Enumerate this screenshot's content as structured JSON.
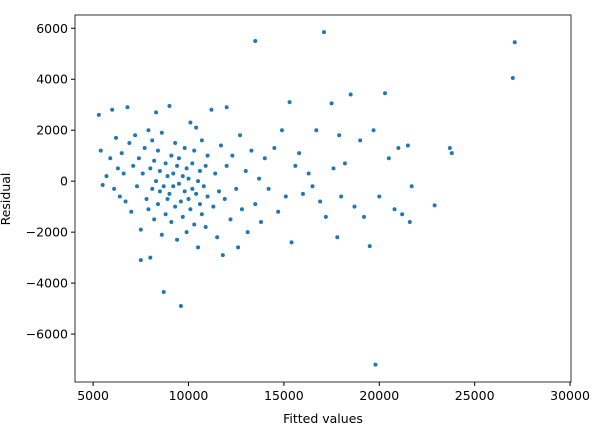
{
  "chart_data": {
    "type": "scatter",
    "xlabel": "Fitted values",
    "ylabel": "Residual",
    "xlim": [
      4050,
      30050
    ],
    "ylim": [
      -7880,
      6520
    ],
    "xticks": [
      5000,
      10000,
      15000,
      20000,
      25000,
      30000
    ],
    "yticks": [
      {
        "value": -6000,
        "label": "−6000"
      },
      {
        "value": -4000,
        "label": "−4000"
      },
      {
        "value": -2000,
        "label": "−2000"
      },
      0,
      2000,
      4000,
      6000
    ],
    "color": "#1f77b4",
    "x": [
      5300,
      5400,
      5500,
      5700,
      5900,
      6000,
      6100,
      6200,
      6300,
      6400,
      6500,
      6600,
      6700,
      6800,
      6900,
      7000,
      7100,
      7200,
      7300,
      7400,
      7500,
      7500,
      7600,
      7700,
      7800,
      7900,
      7900,
      8000,
      8000,
      8100,
      8100,
      8200,
      8200,
      8300,
      8300,
      8400,
      8400,
      8500,
      8500,
      8600,
      8600,
      8700,
      8700,
      8800,
      8800,
      8900,
      8900,
      9000,
      9000,
      9100,
      9100,
      9200,
      9200,
      9300,
      9300,
      9400,
      9400,
      9500,
      9500,
      9600,
      9600,
      9700,
      9700,
      9800,
      9800,
      9900,
      9900,
      10000,
      10000,
      10100,
      10100,
      10200,
      10200,
      10300,
      10300,
      10400,
      10400,
      10500,
      10500,
      10600,
      10600,
      10700,
      10700,
      10800,
      10900,
      10900,
      11000,
      11000,
      11200,
      11300,
      11400,
      11500,
      11600,
      11700,
      11800,
      11900,
      12000,
      12000,
      12200,
      12300,
      12500,
      12600,
      12700,
      12800,
      13000,
      13100,
      13300,
      13500,
      13500,
      13700,
      13800,
      14000,
      14200,
      14500,
      14700,
      14900,
      15100,
      15300,
      15400,
      15600,
      15800,
      16000,
      16300,
      16500,
      16700,
      16900,
      17100,
      17200,
      17500,
      17600,
      17800,
      17900,
      18000,
      18200,
      18500,
      18700,
      19000,
      19200,
      19500,
      19700,
      19800,
      20000,
      20300,
      20500,
      20800,
      21000,
      21200,
      21500,
      21600,
      21700,
      22900,
      23700,
      23800,
      27000,
      27100
    ],
    "y": [
      2600,
      1200,
      -150,
      200,
      900,
      2800,
      -300,
      1700,
      500,
      -600,
      1100,
      300,
      -800,
      2900,
      1500,
      -1200,
      600,
      1800,
      -200,
      900,
      -3100,
      -1900,
      300,
      1300,
      -700,
      2000,
      -1100,
      -3000,
      500,
      -300,
      1600,
      -1500,
      800,
      2700,
      0,
      -900,
      1200,
      -400,
      400,
      -2100,
      1900,
      -4350,
      -200,
      700,
      -1300,
      200,
      -700,
      2950,
      -500,
      1000,
      -1600,
      300,
      -200,
      -1000,
      1500,
      600,
      -2300,
      -100,
      900,
      -4900,
      -800,
      200,
      -1400,
      1300,
      -400,
      -2000,
      500,
      -700,
      100,
      2300,
      -1100,
      -300,
      700,
      -1700,
      1200,
      -500,
      2100,
      0,
      -2600,
      400,
      -900,
      -1300,
      1600,
      -200,
      -1800,
      600,
      -600,
      1000,
      2800,
      -1000,
      300,
      -2200,
      -400,
      1400,
      -2900,
      -700,
      2900,
      600,
      -1500,
      1000,
      -300,
      -2600,
      1800,
      -1100,
      400,
      -2000,
      1200,
      5500,
      -900,
      100,
      -1600,
      900,
      -300,
      1300,
      -1200,
      2000,
      -600,
      3100,
      -2400,
      600,
      1100,
      -500,
      300,
      -200,
      2000,
      -800,
      5850,
      -1400,
      3050,
      500,
      -2200,
      1800,
      -600,
      700,
      3400,
      -1000,
      1600,
      -1400,
      -2550,
      2000,
      -7200,
      -600,
      3450,
      900,
      -1100,
      1300,
      -1300,
      1400,
      -1600,
      -200,
      -950,
      1300,
      1100,
      4050,
      5450
    ]
  }
}
